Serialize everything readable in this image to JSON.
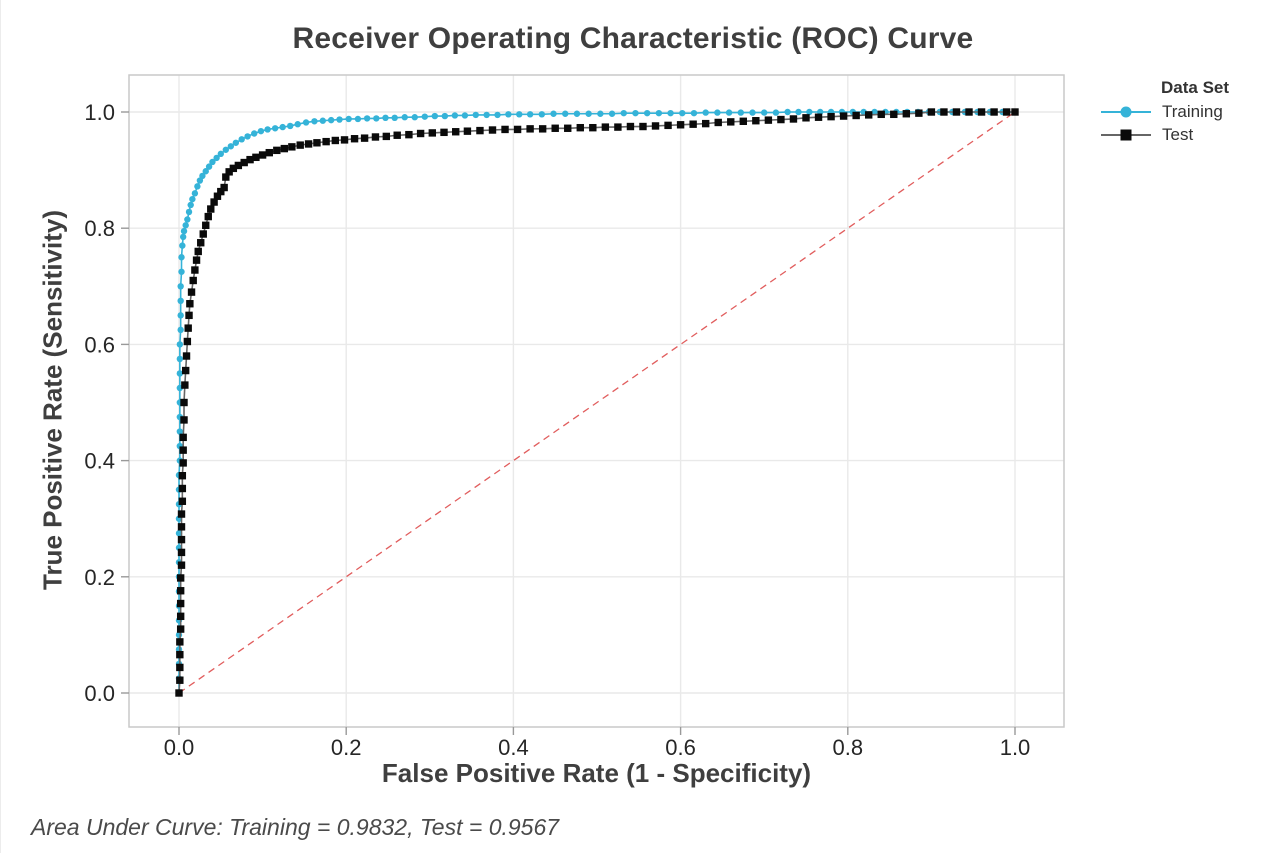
{
  "figure": {
    "title": "Receiver Operating Characteristic (ROC) Curve",
    "footer_note": "Area Under Curve: Training = 0.9832, Test = 0.9567"
  },
  "legend": {
    "title": "Data Set",
    "items": [
      {
        "label": "Training"
      },
      {
        "label": "Test"
      }
    ]
  },
  "colors": {
    "grid": "#e9e9e9",
    "frame": "#c9c9c9",
    "tick": "#999999",
    "tick_label": "#262626",
    "reference": "#e15d5d",
    "training": "#35b3d8",
    "test_marker": "#0a0a0a",
    "test_line": "#666666"
  },
  "chart_data": {
    "type": "line",
    "title": "Receiver Operating Characteristic (ROC) Curve",
    "xlabel": "False Positive Rate (1 - Specificity)",
    "ylabel": "True Positive Rate (Sensitivity)",
    "xlim": [
      -0.06,
      1.06
    ],
    "ylim": [
      -0.06,
      1.06
    ],
    "grid": true,
    "legend_title": "Data Set",
    "legend_position": "right",
    "x_ticks": {
      "values": [
        0.0,
        0.2,
        0.4,
        0.6,
        0.8,
        1.0
      ],
      "labels": [
        "0.0",
        "0.2",
        "0.4",
        "0.6",
        "0.8",
        "1.0"
      ]
    },
    "y_ticks": {
      "values": [
        0.0,
        0.2,
        0.4,
        0.6,
        0.8,
        1.0
      ],
      "labels": [
        "0.0",
        "0.2",
        "0.4",
        "0.6",
        "0.8",
        "1.0"
      ]
    },
    "reference_line": {
      "name": "chance-diagonal",
      "from": [
        0,
        0
      ],
      "to": [
        1,
        1
      ],
      "style": "dashed",
      "color": "#e15d5d"
    },
    "annotations": {
      "auc_training": 0.9832,
      "auc_test": 0.9567
    },
    "series": [
      {
        "name": "Training",
        "marker": "circle",
        "color": "#35b3d8",
        "line_color": "#35b3d8",
        "points": [
          [
            0.0,
            0.0
          ],
          [
            0.0,
            0.025
          ],
          [
            0.0,
            0.05
          ],
          [
            0.0,
            0.075
          ],
          [
            0.0,
            0.1
          ],
          [
            0.0,
            0.125
          ],
          [
            0.0,
            0.15
          ],
          [
            0.0,
            0.175
          ],
          [
            0.0,
            0.2
          ],
          [
            0.0,
            0.225
          ],
          [
            0.0,
            0.25
          ],
          [
            0.0,
            0.275
          ],
          [
            0.0,
            0.3
          ],
          [
            0.0,
            0.325
          ],
          [
            0.0,
            0.35
          ],
          [
            0.0,
            0.375
          ],
          [
            0.001,
            0.4
          ],
          [
            0.001,
            0.425
          ],
          [
            0.001,
            0.45
          ],
          [
            0.001,
            0.475
          ],
          [
            0.001,
            0.5
          ],
          [
            0.001,
            0.525
          ],
          [
            0.001,
            0.55
          ],
          [
            0.001,
            0.575
          ],
          [
            0.001,
            0.6
          ],
          [
            0.002,
            0.625
          ],
          [
            0.002,
            0.65
          ],
          [
            0.002,
            0.675
          ],
          [
            0.002,
            0.7
          ],
          [
            0.003,
            0.725
          ],
          [
            0.003,
            0.75
          ],
          [
            0.004,
            0.77
          ],
          [
            0.005,
            0.785
          ],
          [
            0.006,
            0.795
          ],
          [
            0.008,
            0.805
          ],
          [
            0.01,
            0.815
          ],
          [
            0.012,
            0.828
          ],
          [
            0.014,
            0.84
          ],
          [
            0.016,
            0.85
          ],
          [
            0.019,
            0.86
          ],
          [
            0.022,
            0.872
          ],
          [
            0.025,
            0.882
          ],
          [
            0.028,
            0.89
          ],
          [
            0.032,
            0.898
          ],
          [
            0.036,
            0.906
          ],
          [
            0.04,
            0.914
          ],
          [
            0.045,
            0.921
          ],
          [
            0.05,
            0.928
          ],
          [
            0.056,
            0.935
          ],
          [
            0.062,
            0.941
          ],
          [
            0.068,
            0.947
          ],
          [
            0.075,
            0.953
          ],
          [
            0.082,
            0.958
          ],
          [
            0.09,
            0.963
          ],
          [
            0.098,
            0.967
          ],
          [
            0.106,
            0.97
          ],
          [
            0.115,
            0.972
          ],
          [
            0.124,
            0.974
          ],
          [
            0.133,
            0.976
          ],
          [
            0.142,
            0.979
          ],
          [
            0.152,
            0.982
          ],
          [
            0.162,
            0.984
          ],
          [
            0.172,
            0.985
          ],
          [
            0.182,
            0.986
          ],
          [
            0.192,
            0.987
          ],
          [
            0.203,
            0.988
          ],
          [
            0.214,
            0.988
          ],
          [
            0.225,
            0.989
          ],
          [
            0.236,
            0.989
          ],
          [
            0.247,
            0.99
          ],
          [
            0.258,
            0.99
          ],
          [
            0.27,
            0.991
          ],
          [
            0.282,
            0.991
          ],
          [
            0.294,
            0.992
          ],
          [
            0.306,
            0.993
          ],
          [
            0.318,
            0.993
          ],
          [
            0.33,
            0.994
          ],
          [
            0.342,
            0.994
          ],
          [
            0.355,
            0.995
          ],
          [
            0.368,
            0.995
          ],
          [
            0.381,
            0.995
          ],
          [
            0.394,
            0.996
          ],
          [
            0.407,
            0.996
          ],
          [
            0.42,
            0.996
          ],
          [
            0.434,
            0.996
          ],
          [
            0.448,
            0.997
          ],
          [
            0.462,
            0.997
          ],
          [
            0.476,
            0.997
          ],
          [
            0.49,
            0.997
          ],
          [
            0.504,
            0.997
          ],
          [
            0.518,
            0.997
          ],
          [
            0.532,
            0.998
          ],
          [
            0.546,
            0.998
          ],
          [
            0.56,
            0.998
          ],
          [
            0.574,
            0.998
          ],
          [
            0.588,
            0.998
          ],
          [
            0.602,
            0.998
          ],
          [
            0.616,
            0.998
          ],
          [
            0.63,
            0.999
          ],
          [
            0.644,
            0.999
          ],
          [
            0.658,
            0.999
          ],
          [
            0.672,
            0.999
          ],
          [
            0.686,
            0.999
          ],
          [
            0.7,
            0.999
          ],
          [
            0.714,
            0.999
          ],
          [
            0.728,
            1.0
          ],
          [
            0.741,
            1.0
          ],
          [
            0.754,
            1.0
          ],
          [
            0.767,
            1.0
          ],
          [
            0.78,
            1.0
          ],
          [
            0.793,
            1.0
          ],
          [
            0.806,
            1.0
          ],
          [
            0.819,
            1.0
          ],
          [
            0.832,
            1.0
          ],
          [
            0.845,
            1.0
          ],
          [
            0.858,
            1.0
          ],
          [
            0.871,
            1.0
          ],
          [
            0.884,
            1.0
          ],
          [
            0.897,
            1.0
          ],
          [
            0.91,
            1.0
          ],
          [
            0.925,
            1.0
          ],
          [
            0.94,
            1.0
          ],
          [
            0.955,
            1.0
          ],
          [
            0.97,
            1.0
          ],
          [
            0.985,
            1.0
          ],
          [
            1.0,
            1.0
          ]
        ]
      },
      {
        "name": "Test",
        "marker": "square",
        "color": "#0a0a0a",
        "line_color": "#666666",
        "points": [
          [
            0.0,
            0.0
          ],
          [
            0.001,
            0.022
          ],
          [
            0.001,
            0.044
          ],
          [
            0.001,
            0.066
          ],
          [
            0.001,
            0.088
          ],
          [
            0.002,
            0.11
          ],
          [
            0.002,
            0.132
          ],
          [
            0.002,
            0.154
          ],
          [
            0.002,
            0.176
          ],
          [
            0.002,
            0.198
          ],
          [
            0.003,
            0.22
          ],
          [
            0.003,
            0.242
          ],
          [
            0.003,
            0.264
          ],
          [
            0.003,
            0.286
          ],
          [
            0.003,
            0.308
          ],
          [
            0.004,
            0.33
          ],
          [
            0.004,
            0.352
          ],
          [
            0.004,
            0.374
          ],
          [
            0.005,
            0.396
          ],
          [
            0.005,
            0.418
          ],
          [
            0.005,
            0.44
          ],
          [
            0.006,
            0.47
          ],
          [
            0.006,
            0.5
          ],
          [
            0.007,
            0.53
          ],
          [
            0.008,
            0.555
          ],
          [
            0.009,
            0.58
          ],
          [
            0.01,
            0.605
          ],
          [
            0.011,
            0.628
          ],
          [
            0.012,
            0.65
          ],
          [
            0.013,
            0.67
          ],
          [
            0.015,
            0.69
          ],
          [
            0.017,
            0.71
          ],
          [
            0.019,
            0.728
          ],
          [
            0.021,
            0.745
          ],
          [
            0.023,
            0.76
          ],
          [
            0.026,
            0.775
          ],
          [
            0.029,
            0.79
          ],
          [
            0.032,
            0.805
          ],
          [
            0.035,
            0.82
          ],
          [
            0.038,
            0.833
          ],
          [
            0.042,
            0.845
          ],
          [
            0.046,
            0.855
          ],
          [
            0.05,
            0.863
          ],
          [
            0.054,
            0.87
          ],
          [
            0.056,
            0.888
          ],
          [
            0.06,
            0.897
          ],
          [
            0.065,
            0.903
          ],
          [
            0.071,
            0.908
          ],
          [
            0.078,
            0.913
          ],
          [
            0.085,
            0.918
          ],
          [
            0.092,
            0.922
          ],
          [
            0.1,
            0.926
          ],
          [
            0.108,
            0.93
          ],
          [
            0.117,
            0.934
          ],
          [
            0.126,
            0.937
          ],
          [
            0.135,
            0.94
          ],
          [
            0.145,
            0.943
          ],
          [
            0.155,
            0.945
          ],
          [
            0.165,
            0.947
          ],
          [
            0.176,
            0.949
          ],
          [
            0.187,
            0.951
          ],
          [
            0.198,
            0.952
          ],
          [
            0.21,
            0.954
          ],
          [
            0.222,
            0.955
          ],
          [
            0.235,
            0.957
          ],
          [
            0.248,
            0.958
          ],
          [
            0.261,
            0.96
          ],
          [
            0.275,
            0.961
          ],
          [
            0.289,
            0.963
          ],
          [
            0.303,
            0.964
          ],
          [
            0.317,
            0.965
          ],
          [
            0.331,
            0.966
          ],
          [
            0.345,
            0.967
          ],
          [
            0.36,
            0.968
          ],
          [
            0.375,
            0.969
          ],
          [
            0.39,
            0.97
          ],
          [
            0.405,
            0.97
          ],
          [
            0.42,
            0.971
          ],
          [
            0.435,
            0.971
          ],
          [
            0.45,
            0.972
          ],
          [
            0.465,
            0.972
          ],
          [
            0.48,
            0.973
          ],
          [
            0.495,
            0.973
          ],
          [
            0.51,
            0.974
          ],
          [
            0.525,
            0.974
          ],
          [
            0.54,
            0.975
          ],
          [
            0.555,
            0.975
          ],
          [
            0.57,
            0.976
          ],
          [
            0.585,
            0.977
          ],
          [
            0.6,
            0.978
          ],
          [
            0.615,
            0.979
          ],
          [
            0.63,
            0.98
          ],
          [
            0.645,
            0.982
          ],
          [
            0.66,
            0.983
          ],
          [
            0.675,
            0.984
          ],
          [
            0.69,
            0.985
          ],
          [
            0.705,
            0.986
          ],
          [
            0.72,
            0.987
          ],
          [
            0.735,
            0.988
          ],
          [
            0.75,
            0.99
          ],
          [
            0.765,
            0.991
          ],
          [
            0.78,
            0.992
          ],
          [
            0.795,
            0.993
          ],
          [
            0.81,
            0.994
          ],
          [
            0.825,
            0.995
          ],
          [
            0.84,
            0.996
          ],
          [
            0.855,
            0.996
          ],
          [
            0.87,
            0.997
          ],
          [
            0.885,
            0.998
          ],
          [
            0.9,
            1.0
          ],
          [
            0.915,
            1.0
          ],
          [
            0.93,
            1.0
          ],
          [
            0.945,
            1.0
          ],
          [
            0.96,
            1.0
          ],
          [
            0.975,
            1.0
          ],
          [
            0.99,
            1.0
          ],
          [
            1.0,
            1.0
          ]
        ]
      }
    ]
  }
}
